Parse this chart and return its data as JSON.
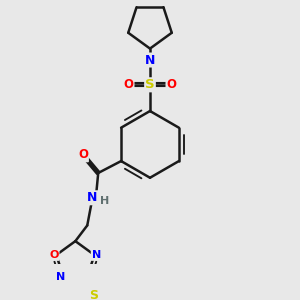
{
  "bg_color": "#e8e8e8",
  "bond_color": "#1a1a1a",
  "bond_width": 1.8,
  "atom_colors": {
    "N": "#0000ff",
    "O": "#ff0000",
    "S": "#cccc00",
    "H": "#607070"
  },
  "font_size": 8.5
}
